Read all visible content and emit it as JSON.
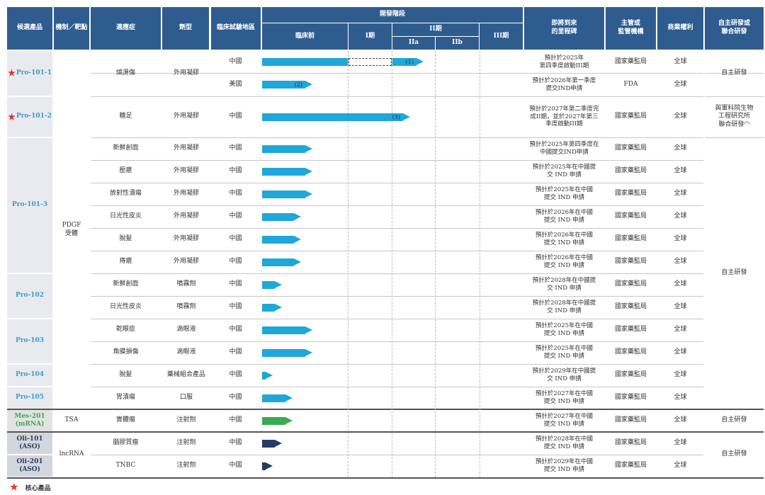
{
  "colors": {
    "header": "#2f5c8f",
    "blue": "#1fa7da",
    "green": "#3aaa4f",
    "navy": "#243b64",
    "star": "#e0342c",
    "prodBlue": "#3d9ad1",
    "prodGreen": "#3aaa4f",
    "prodNavy": "#2b3e64"
  },
  "header": {
    "product": "候選產品",
    "mechanism": "機制／靶點",
    "indication": "適應症",
    "dosage": "劑型",
    "region": "臨床試驗地區",
    "stage": "開發階段",
    "preclinical": "臨床前",
    "phase1": "I期",
    "phase2": "II期",
    "phase2a": "IIa",
    "phase2b": "IIb",
    "phase3": "III期",
    "milestone": "即將到來\n的里程碑",
    "regulator": "主管或\n監管機構",
    "rights": "商業權利",
    "rd": "自主研發或\n聯合研發"
  },
  "products": [
    {
      "name": "Pro-101-1",
      "star": true,
      "color": "prodBlue"
    },
    {
      "name": "Pro-101-2",
      "star": true,
      "color": "prodBlue"
    },
    {
      "name": "Pro-101-3",
      "star": false,
      "color": "prodBlue"
    },
    {
      "name": "Pro-102",
      "star": false,
      "color": "prodBlue"
    },
    {
      "name": "Pro-103",
      "star": false,
      "color": "prodBlue"
    },
    {
      "name": "Pro-104",
      "star": false,
      "color": "prodBlue"
    },
    {
      "name": "Pro-105",
      "star": false,
      "color": "prodBlue"
    },
    {
      "name": "Mes-201\n(mRNA)",
      "star": false,
      "color": "prodGreen"
    },
    {
      "name": "Oli-101\n(ASO)",
      "star": false,
      "color": "prodNavy"
    },
    {
      "name": "Oli-201\n(ASO)",
      "star": false,
      "color": "prodNavy"
    }
  ],
  "mechanisms": [
    "PDGF\n受體",
    "TSA",
    "lncRNA"
  ],
  "indications": [
    "燒燙傷",
    "糖足",
    "新鮮創面",
    "壓瘡",
    "放射性潰瘍",
    "日光性皮炎",
    "脫髮",
    "痔瘡",
    "新鮮創面",
    "日光性皮炎",
    "乾眼症",
    "角膜損傷",
    "脫髮",
    "胃潰瘍",
    "實體瘤",
    "腦膠質瘤",
    "TNBC"
  ],
  "dosages": [
    "外用凝膠",
    "外用凝膠",
    "外用凝膠",
    "外用凝膠",
    "外用凝膠",
    "外用凝膠",
    "外用凝膠",
    "外用凝膠",
    "噴霧劑",
    "噴霧劑",
    "滴眼液",
    "滴眼液",
    "藥械組合產品",
    "口服",
    "注射劑",
    "注射劑",
    "注射劑"
  ],
  "rows": [
    {
      "region": "中國",
      "stage": 0.74,
      "color": "blue",
      "label": "(1)",
      "milestone": "預計於2025年\n第四季度啟動III期",
      "regulator": "國家藥監局",
      "rights": "全球"
    },
    {
      "region": "美國",
      "stage": 0.23,
      "color": "blue",
      "label": "(2)",
      "milestone": "預計於2026年第一季度\n提交IND申請",
      "regulator": "FDA",
      "rights": "全球"
    },
    {
      "region": "中國",
      "stage": 0.68,
      "color": "blue",
      "label": "(3)",
      "milestone": "預計於2027年第二季度完\n成II期，並於2027年第三\n季度啟動III期",
      "regulator": "國家藥監局",
      "rights": "全球"
    },
    {
      "region": "中國",
      "stage": 0.23,
      "color": "blue",
      "label": "",
      "milestone": "預計於2025年第四季度在\n中國提交IND申請",
      "regulator": "國家藥監局",
      "rights": "全球"
    },
    {
      "region": "中國",
      "stage": 0.23,
      "color": "blue",
      "label": "",
      "milestone": "預計於2025年在中國提\n交 IND 申請",
      "regulator": "國家藥監局",
      "rights": "全球"
    },
    {
      "region": "中國",
      "stage": 0.23,
      "color": "blue",
      "label": "",
      "milestone": "預計於2025年在中國\n提交 IND 申請",
      "regulator": "國家藥監局",
      "rights": "全球"
    },
    {
      "region": "中國",
      "stage": 0.18,
      "color": "blue",
      "label": "",
      "milestone": "預計於2026年在中國\n提交 IND 申請",
      "regulator": "國家藥監局",
      "rights": "全球"
    },
    {
      "region": "中國",
      "stage": 0.18,
      "color": "blue",
      "label": "",
      "milestone": "預計於2026年在中國\n提交 IND 申請",
      "regulator": "國家藥監局",
      "rights": "全球"
    },
    {
      "region": "中國",
      "stage": 0.18,
      "color": "blue",
      "label": "",
      "milestone": "預計於2026年在中國\n提交 IND 申請",
      "regulator": "國家藥監局",
      "rights": "全球"
    },
    {
      "region": "中國",
      "stage": 0.09,
      "color": "blue",
      "label": "",
      "milestone": "預計於2028年在中國提\n交 IND 申請",
      "regulator": "國家藥監局",
      "rights": "全球"
    },
    {
      "region": "中國",
      "stage": 0.09,
      "color": "blue",
      "label": "",
      "milestone": "預計於2028年在中國提\n交 IND 申請",
      "regulator": "國家藥監局",
      "rights": "全球"
    },
    {
      "region": "中國",
      "stage": 0.23,
      "color": "blue",
      "label": "",
      "milestone": "預計於2025年在中國\n提交 IND 申請",
      "regulator": "國家藥監局",
      "rights": "全球"
    },
    {
      "region": "中國",
      "stage": 0.23,
      "color": "blue",
      "label": "",
      "milestone": "預計於2025年在中國\n提交 IND 申請",
      "regulator": "國家藥監局",
      "rights": "全球"
    },
    {
      "region": "中國",
      "stage": 0.05,
      "color": "blue",
      "label": "",
      "milestone": "預計於2029年在中國提\n交 IND 申請",
      "regulator": "國家藥監局",
      "rights": "全球"
    },
    {
      "region": "中國",
      "stage": 0.14,
      "color": "blue",
      "label": "",
      "milestone": "預計於2027年在中國\n提交 IND 申請",
      "regulator": "國家藥監局",
      "rights": "全球"
    },
    {
      "region": "中國",
      "stage": 0.14,
      "color": "green",
      "label": "",
      "milestone": "預計於2027年在中國\n提交 IND 申請",
      "regulator": "國家藥監局",
      "rights": "全球"
    },
    {
      "region": "中國",
      "stage": 0.09,
      "color": "navy",
      "label": "",
      "milestone": "預計於2028年在中國\n提交 IND 申請",
      "regulator": "國家藥監局",
      "rights": "全球"
    },
    {
      "region": "中國",
      "stage": 0.05,
      "color": "navy",
      "label": "",
      "milestone": "預計於2029年在中國\n提交 IND 申請",
      "regulator": "國家藥監局",
      "rights": "全球"
    }
  ],
  "rd": [
    "自主研發",
    "與軍科院生物\n工程研究所\n聯合研發⁽⁷⁾",
    "自主研發",
    "自主研發",
    "自主研發"
  ],
  "footnote": "核心產品"
}
